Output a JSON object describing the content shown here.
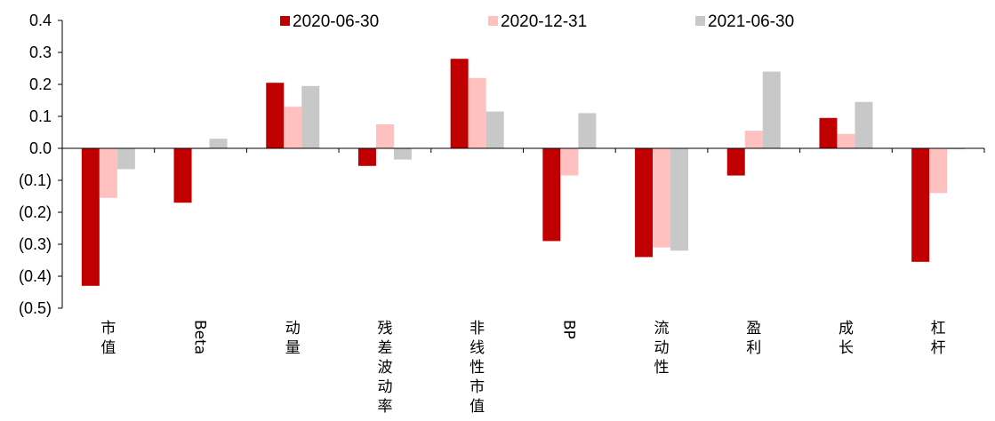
{
  "chart_data": {
    "type": "bar",
    "title": "",
    "xlabel": "",
    "ylabel": "",
    "ylim": [
      -0.5,
      0.4
    ],
    "yticks": [
      0.4,
      0.3,
      0.2,
      0.1,
      0.0,
      -0.1,
      -0.2,
      -0.3,
      -0.4,
      -0.5
    ],
    "ytick_labels": [
      "0.4",
      "0.3",
      "0.2",
      "0.1",
      "0.0",
      "(0.1)",
      "(0.2)",
      "(0.3)",
      "(0.4)",
      "(0.5)"
    ],
    "categories": [
      "市值",
      "Beta",
      "动量",
      "残差波动率",
      "非线性市值",
      "BP",
      "流动性",
      "盈利",
      "成长",
      "杠杆"
    ],
    "series": [
      {
        "name": "2020-06-30",
        "color": "#c00000",
        "values": [
          -0.43,
          -0.17,
          0.205,
          -0.055,
          0.28,
          -0.29,
          -0.34,
          -0.085,
          0.095,
          -0.355
        ]
      },
      {
        "name": "2020-12-31",
        "color": "#ffc0c0",
        "values": [
          -0.155,
          0.0,
          0.13,
          0.075,
          0.22,
          -0.085,
          -0.31,
          0.055,
          0.045,
          -0.14
        ]
      },
      {
        "name": "2021-06-30",
        "color": "#c8c8c8",
        "values": [
          -0.065,
          0.03,
          0.195,
          -0.035,
          0.115,
          0.11,
          -0.32,
          0.24,
          0.145,
          -0.003
        ]
      }
    ],
    "grid": false,
    "legend": "top"
  }
}
